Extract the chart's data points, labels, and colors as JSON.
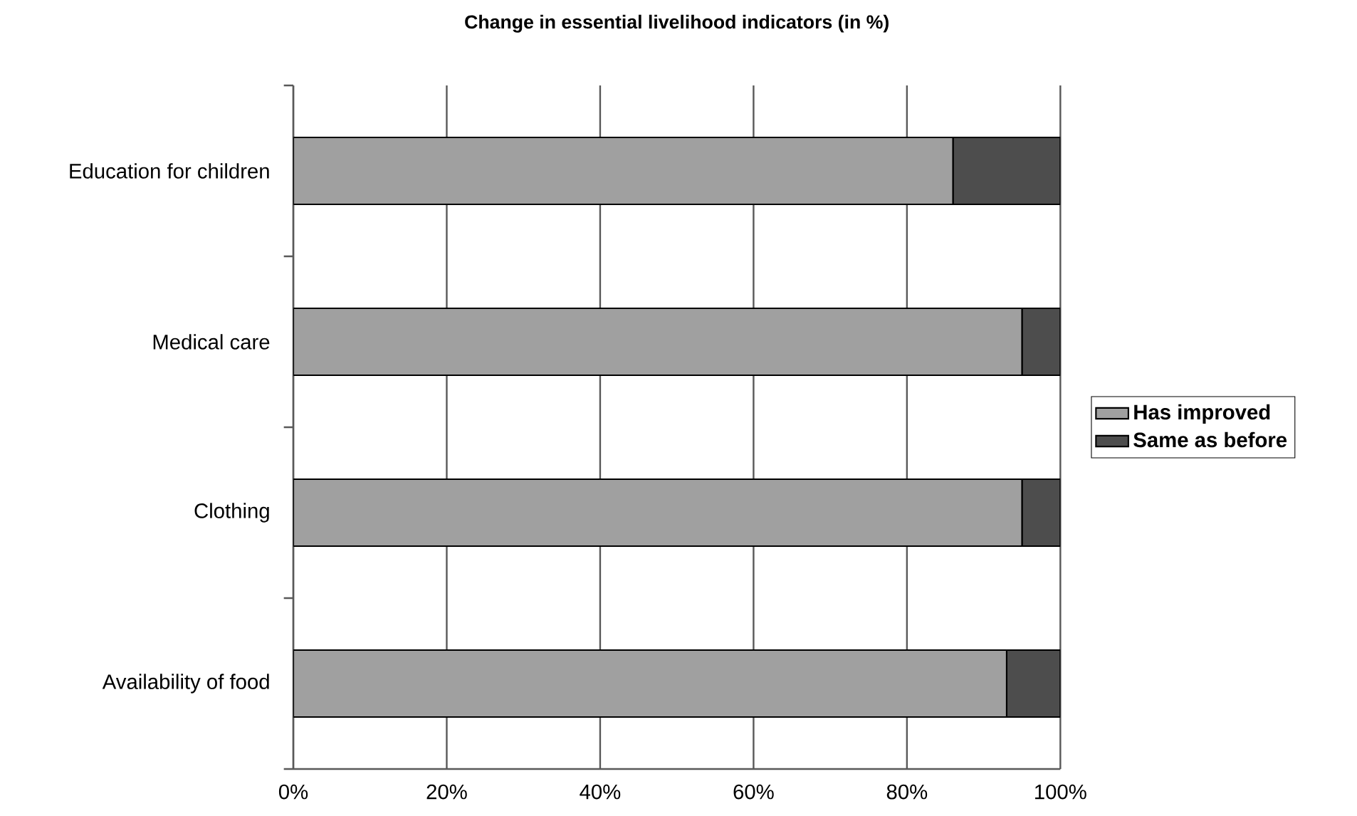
{
  "chart_data": {
    "type": "bar",
    "orientation": "horizontal",
    "stacked": true,
    "title": "Change in essential livelihood indicators (in %)",
    "categories": [
      "Education for children",
      "Medical care",
      "Clothing",
      "Availability of food"
    ],
    "series": [
      {
        "name": "Has improved",
        "color": "#a0a0a0",
        "values": [
          86,
          95,
          95,
          93
        ]
      },
      {
        "name": "Same as before",
        "color": "#4d4d4d",
        "values": [
          14,
          5,
          5,
          7
        ]
      }
    ],
    "xlim": [
      0,
      100
    ],
    "xticks": [
      {
        "value": 0,
        "label": "0%"
      },
      {
        "value": 20,
        "label": "20%"
      },
      {
        "value": 40,
        "label": "40%"
      },
      {
        "value": 60,
        "label": "60%"
      },
      {
        "value": 80,
        "label": "80%"
      },
      {
        "value": 100,
        "label": "100%"
      }
    ],
    "grid": "x",
    "legend": "right"
  }
}
